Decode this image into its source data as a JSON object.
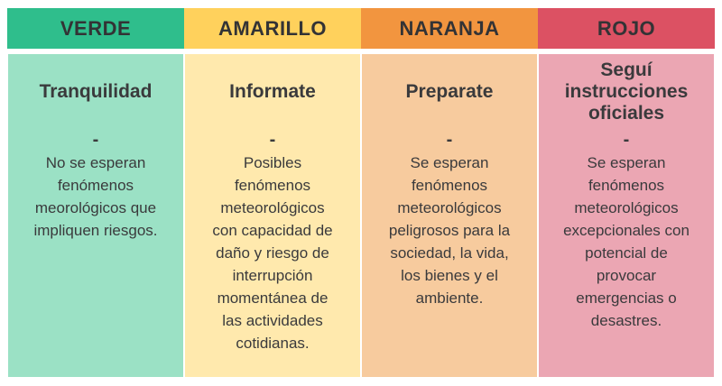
{
  "page": {
    "background": "#FFFFFF",
    "text_color": "#3A3A3C"
  },
  "alert_levels": [
    {
      "id": "verde",
      "header": "VERDE",
      "header_color": "#2FBE8C",
      "body_color": "#9BE1C5",
      "title": "Tranquilidad",
      "separator": "-",
      "description": "No se esperan\nfenómenos\nmeorológicos que\nimpliquen riesgos."
    },
    {
      "id": "amarillo",
      "header": "AMARILLO",
      "header_color": "#FFD15C",
      "body_color": "#FFE9AD",
      "title": "Informate",
      "separator": "-",
      "description": "Posibles\nfenómenos\nmeteorológicos\ncon capacidad de\ndaño y riesgo de\ninterrupción\nmomentánea de\nlas actividades\ncotidianas."
    },
    {
      "id": "naranja",
      "header": "NARANJA",
      "header_color": "#F2953F",
      "body_color": "#F7CB9E",
      "title": "Preparate",
      "separator": "-",
      "description": "Se esperan\nfenómenos\nmeteorológicos\npeligrosos para la\nsociedad, la vida,\nlos bienes y el\nambiente."
    },
    {
      "id": "rojo",
      "header": "ROJO",
      "header_color": "#DC5163",
      "body_color": "#EBA6B3",
      "title": "Seguí\ninstrucciones\noficiales",
      "separator": "-",
      "description": "Se esperan\nfenómenos\nmeteorológicos\nexcepcionales con\npotencial de\nprovocar\nemergencias o\ndesastres."
    }
  ]
}
